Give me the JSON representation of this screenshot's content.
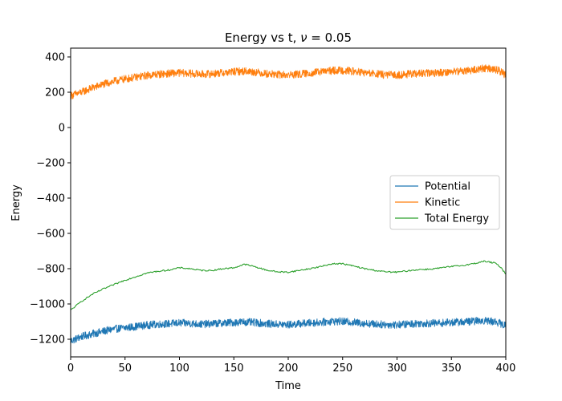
{
  "chart_data": {
    "type": "line",
    "title_prefix": "Energy vs t, ",
    "title_symbol": "ν",
    "title_suffix": " = 0.05",
    "xlabel": "Time",
    "ylabel": "Energy",
    "xlim": [
      0,
      400
    ],
    "ylim": [
      -1300,
      450
    ],
    "xticks": [
      0,
      50,
      100,
      150,
      200,
      250,
      300,
      350,
      400
    ],
    "yticks": [
      400,
      200,
      0,
      -200,
      -400,
      -600,
      -800,
      -1000,
      -1200
    ],
    "ytick_labels": [
      "400",
      "200",
      "0",
      "−200",
      "−400",
      "−600",
      "−800",
      "−1000",
      "−1200"
    ],
    "grid": false,
    "legend_position": "center-right",
    "series": [
      {
        "name": "Potential",
        "color": "#1f77b4",
        "noise": 22,
        "points": [
          [
            0,
            -1210
          ],
          [
            10,
            -1185
          ],
          [
            20,
            -1170
          ],
          [
            30,
            -1155
          ],
          [
            40,
            -1142
          ],
          [
            50,
            -1135
          ],
          [
            60,
            -1128
          ],
          [
            70,
            -1120
          ],
          [
            80,
            -1115
          ],
          [
            90,
            -1112
          ],
          [
            100,
            -1108
          ],
          [
            110,
            -1110
          ],
          [
            120,
            -1115
          ],
          [
            130,
            -1112
          ],
          [
            140,
            -1108
          ],
          [
            150,
            -1105
          ],
          [
            160,
            -1102
          ],
          [
            170,
            -1106
          ],
          [
            180,
            -1112
          ],
          [
            190,
            -1115
          ],
          [
            200,
            -1118
          ],
          [
            210,
            -1112
          ],
          [
            220,
            -1108
          ],
          [
            230,
            -1104
          ],
          [
            240,
            -1098
          ],
          [
            250,
            -1100
          ],
          [
            260,
            -1104
          ],
          [
            270,
            -1110
          ],
          [
            280,
            -1114
          ],
          [
            290,
            -1117
          ],
          [
            300,
            -1118
          ],
          [
            310,
            -1114
          ],
          [
            320,
            -1110
          ],
          [
            330,
            -1110
          ],
          [
            340,
            -1108
          ],
          [
            350,
            -1104
          ],
          [
            360,
            -1102
          ],
          [
            370,
            -1098
          ],
          [
            380,
            -1094
          ],
          [
            390,
            -1100
          ],
          [
            395,
            -1110
          ],
          [
            400,
            -1125
          ]
        ]
      },
      {
        "name": "Kinetic",
        "color": "#ff7f0e",
        "noise": 22,
        "points": [
          [
            0,
            180
          ],
          [
            10,
            200
          ],
          [
            20,
            225
          ],
          [
            30,
            245
          ],
          [
            40,
            262
          ],
          [
            50,
            275
          ],
          [
            60,
            285
          ],
          [
            70,
            295
          ],
          [
            80,
            302
          ],
          [
            90,
            306
          ],
          [
            100,
            310
          ],
          [
            110,
            306
          ],
          [
            120,
            302
          ],
          [
            130,
            305
          ],
          [
            140,
            310
          ],
          [
            150,
            316
          ],
          [
            160,
            320
          ],
          [
            170,
            314
          ],
          [
            180,
            305
          ],
          [
            190,
            300
          ],
          [
            200,
            298
          ],
          [
            210,
            302
          ],
          [
            220,
            308
          ],
          [
            230,
            316
          ],
          [
            240,
            322
          ],
          [
            250,
            325
          ],
          [
            260,
            318
          ],
          [
            270,
            310
          ],
          [
            280,
            304
          ],
          [
            290,
            298
          ],
          [
            300,
            298
          ],
          [
            310,
            302
          ],
          [
            320,
            306
          ],
          [
            330,
            308
          ],
          [
            340,
            312
          ],
          [
            350,
            316
          ],
          [
            360,
            320
          ],
          [
            370,
            326
          ],
          [
            380,
            336
          ],
          [
            390,
            330
          ],
          [
            395,
            318
          ],
          [
            400,
            295
          ]
        ]
      },
      {
        "name": "Total Energy",
        "color": "#2ca02c",
        "noise": 4,
        "points": [
          [
            0,
            -1035
          ],
          [
            10,
            -985
          ],
          [
            20,
            -945
          ],
          [
            30,
            -915
          ],
          [
            40,
            -890
          ],
          [
            50,
            -865
          ],
          [
            60,
            -845
          ],
          [
            70,
            -825
          ],
          [
            80,
            -815
          ],
          [
            90,
            -808
          ],
          [
            100,
            -795
          ],
          [
            110,
            -800
          ],
          [
            120,
            -810
          ],
          [
            130,
            -810
          ],
          [
            140,
            -800
          ],
          [
            150,
            -795
          ],
          [
            160,
            -775
          ],
          [
            170,
            -790
          ],
          [
            180,
            -808
          ],
          [
            190,
            -818
          ],
          [
            200,
            -820
          ],
          [
            210,
            -810
          ],
          [
            220,
            -800
          ],
          [
            230,
            -788
          ],
          [
            240,
            -772
          ],
          [
            250,
            -772
          ],
          [
            260,
            -785
          ],
          [
            270,
            -800
          ],
          [
            280,
            -810
          ],
          [
            290,
            -818
          ],
          [
            300,
            -820
          ],
          [
            310,
            -812
          ],
          [
            320,
            -805
          ],
          [
            330,
            -803
          ],
          [
            340,
            -796
          ],
          [
            350,
            -788
          ],
          [
            360,
            -782
          ],
          [
            370,
            -772
          ],
          [
            380,
            -758
          ],
          [
            390,
            -768
          ],
          [
            395,
            -790
          ],
          [
            400,
            -830
          ]
        ]
      }
    ]
  }
}
